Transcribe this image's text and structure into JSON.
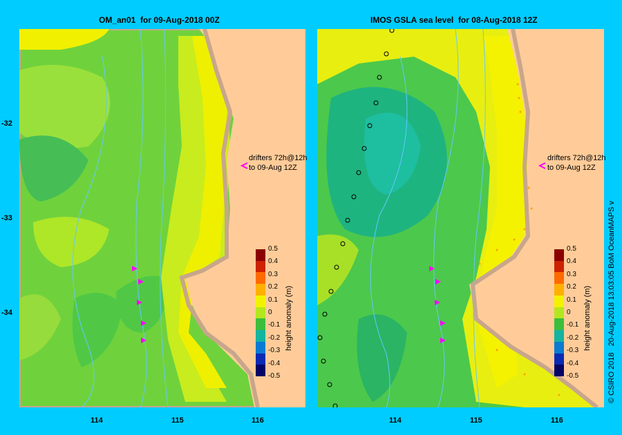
{
  "panels": [
    {
      "title": "OM_an01  for 09-Aug-2018 00Z",
      "drifter_note": "drifters 72h@12h\nto 09-Aug 12Z"
    },
    {
      "title": "IMOS GSLA sea level  for 08-Aug-2018 12Z",
      "drifter_note": "drifters 72h@12h\nto 09-Aug 12Z"
    }
  ],
  "axes": {
    "y_ticks": [
      "-32",
      "-33",
      "-34"
    ],
    "x_ticks": [
      "114",
      "115",
      "116"
    ],
    "longitude_range": [
      113.0,
      116.6
    ],
    "latitude_range": [
      -35.0,
      -31.0
    ]
  },
  "colorbar": {
    "title": "height anomaly (m)",
    "labels": [
      "0.5",
      "0.4",
      "0.3",
      "0.2",
      "0.1",
      "0",
      "-0.1",
      "-0.2",
      "-0.3",
      "-0.4",
      "-0.5"
    ],
    "range": [
      -0.5,
      0.5
    ],
    "colors": [
      "#8b0000",
      "#cc2200",
      "#ff6a00",
      "#ffb000",
      "#f2f200",
      "#b4e61e",
      "#3cbe3c",
      "#14b4a0",
      "#0a7ad2",
      "#0a2ab4",
      "#050565"
    ]
  },
  "credit": "© CSIRO 2018   20-Aug-2018 13:03:05 BoM OceanMAPS v",
  "colors": {
    "background": "#00ccff",
    "land": "#ffcc99",
    "shelf": "#c8a68c",
    "drifter": "#ff00ff",
    "isobath": "#64c8ff"
  }
}
